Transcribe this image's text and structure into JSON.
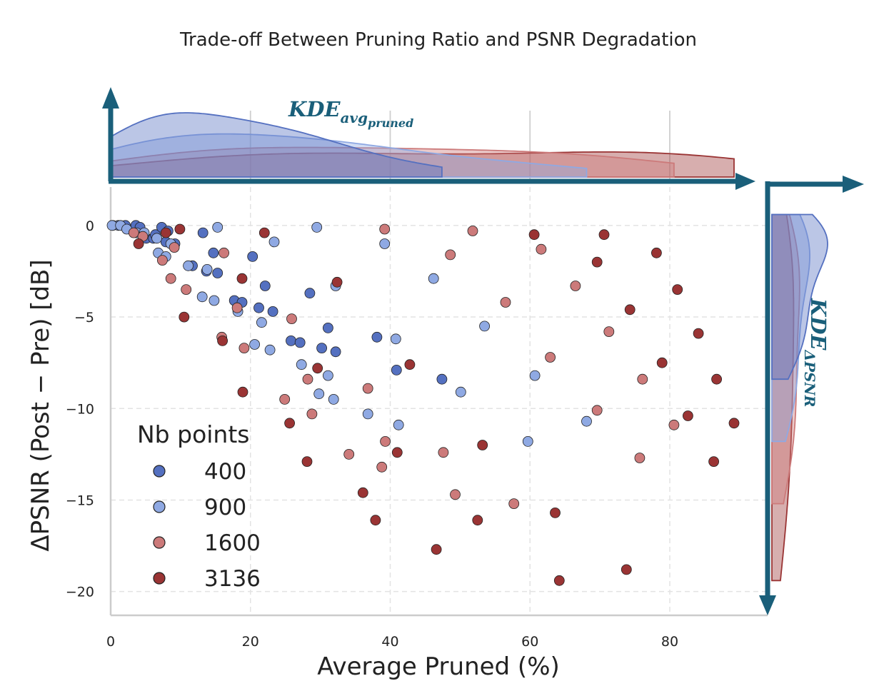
{
  "chart_data": {
    "type": "scatter",
    "title": "Trade-off Between Pruning Ratio and PSNR Degradation",
    "xlabel": "Average Pruned (%)",
    "ylabel": "ΔPSNR (Post − Pre) [dB]",
    "xlim": [
      0,
      94
    ],
    "ylim": [
      -21.3,
      2.1
    ],
    "x_ticks": [
      0,
      20,
      40,
      60,
      80
    ],
    "y_ticks": [
      0,
      -5,
      -10,
      -15,
      -20
    ],
    "grid": true,
    "legend": {
      "title": "Nb points",
      "position": "bottom-left"
    },
    "marginal_x_label": {
      "base": "KDE",
      "sub": "avg",
      "subsub": "pruned"
    },
    "marginal_y_label": {
      "base": "KDE",
      "sub": "ΔPSNR"
    },
    "arrow_color": "#1a5f7a",
    "series": [
      {
        "name": "400",
        "color": "#5470c0",
        "points": [
          [
            0.3,
            0
          ],
          [
            1.1,
            0
          ],
          [
            2.1,
            0
          ],
          [
            3.6,
            0
          ],
          [
            4.2,
            -0.1
          ],
          [
            5.1,
            -0.7
          ],
          [
            6.1,
            -0.7
          ],
          [
            6.4,
            -0.5
          ],
          [
            7.3,
            -0.1
          ],
          [
            7.9,
            -0.9
          ],
          [
            8.2,
            -0.3
          ],
          [
            9.2,
            -1.0
          ],
          [
            11.7,
            -2.2
          ],
          [
            13.2,
            -0.4
          ],
          [
            13.7,
            -2.5
          ],
          [
            14.7,
            -1.5
          ],
          [
            15.3,
            -2.6
          ],
          [
            17.7,
            -4.1
          ],
          [
            18.8,
            -4.2
          ],
          [
            20.3,
            -1.7
          ],
          [
            21.2,
            -4.5
          ],
          [
            22.1,
            -3.3
          ],
          [
            23.2,
            -4.7
          ],
          [
            25.8,
            -6.3
          ],
          [
            27.1,
            -6.4
          ],
          [
            28.5,
            -3.7
          ],
          [
            30.2,
            -6.7
          ],
          [
            31.1,
            -5.6
          ],
          [
            32.2,
            -6.9
          ],
          [
            38.1,
            -6.1
          ],
          [
            40.9,
            -7.9
          ],
          [
            47.4,
            -8.4
          ]
        ]
      },
      {
        "name": "900",
        "color": "#8fa9e3",
        "points": [
          [
            0.2,
            0
          ],
          [
            1.4,
            0
          ],
          [
            2.3,
            -0.2
          ],
          [
            3.7,
            -0.4
          ],
          [
            4.8,
            -0.4
          ],
          [
            6.6,
            -0.7
          ],
          [
            6.8,
            -1.5
          ],
          [
            7.9,
            -1.7
          ],
          [
            8.6,
            -1.0
          ],
          [
            11.1,
            -2.2
          ],
          [
            13.1,
            -3.9
          ],
          [
            13.8,
            -2.4
          ],
          [
            14.8,
            -4.1
          ],
          [
            15.3,
            -0.1
          ],
          [
            18.2,
            -4.7
          ],
          [
            20.6,
            -6.5
          ],
          [
            21.6,
            -5.3
          ],
          [
            22.8,
            -6.8
          ],
          [
            23.4,
            -0.9
          ],
          [
            27.3,
            -7.6
          ],
          [
            29.5,
            -0.1
          ],
          [
            29.8,
            -9.2
          ],
          [
            31.1,
            -8.2
          ],
          [
            31.9,
            -9.5
          ],
          [
            32.2,
            -3.3
          ],
          [
            36.8,
            -10.3
          ],
          [
            39.2,
            -1.0
          ],
          [
            40.8,
            -6.2
          ],
          [
            41.2,
            -10.9
          ],
          [
            46.2,
            -2.9
          ],
          [
            50.1,
            -9.1
          ],
          [
            53.5,
            -5.5
          ],
          [
            59.7,
            -11.8
          ],
          [
            60.7,
            -8.2
          ],
          [
            68.1,
            -10.7
          ]
        ]
      },
      {
        "name": "1600",
        "color": "#cc7a7a",
        "points": [
          [
            3.3,
            -0.4
          ],
          [
            4.6,
            -0.6
          ],
          [
            7.4,
            -1.9
          ],
          [
            9.1,
            -1.2
          ],
          [
            8.6,
            -2.9
          ],
          [
            10.8,
            -3.5
          ],
          [
            15.9,
            -6.1
          ],
          [
            16.2,
            -1.5
          ],
          [
            18.1,
            -4.5
          ],
          [
            19.1,
            -6.7
          ],
          [
            24.9,
            -9.5
          ],
          [
            25.9,
            -5.1
          ],
          [
            28.2,
            -8.4
          ],
          [
            28.8,
            -10.3
          ],
          [
            34.1,
            -12.5
          ],
          [
            36.8,
            -8.9
          ],
          [
            38.8,
            -13.2
          ],
          [
            39.2,
            -0.2
          ],
          [
            39.3,
            -11.8
          ],
          [
            47.6,
            -12.4
          ],
          [
            48.6,
            -1.6
          ],
          [
            49.3,
            -14.7
          ],
          [
            51.8,
            -0.3
          ],
          [
            56.5,
            -4.2
          ],
          [
            57.7,
            -15.2
          ],
          [
            61.6,
            -1.3
          ],
          [
            62.9,
            -7.2
          ],
          [
            66.5,
            -3.3
          ],
          [
            69.6,
            -10.1
          ],
          [
            71.3,
            -5.8
          ],
          [
            75.7,
            -12.7
          ],
          [
            76.1,
            -8.4
          ],
          [
            80.6,
            -10.9
          ]
        ]
      },
      {
        "name": "3136",
        "color": "#9a3434",
        "points": [
          [
            4.0,
            -1.0
          ],
          [
            7.9,
            -0.4
          ],
          [
            9.9,
            -0.2
          ],
          [
            10.5,
            -5.0
          ],
          [
            16.0,
            -6.3
          ],
          [
            18.8,
            -2.9
          ],
          [
            18.9,
            -9.1
          ],
          [
            22.0,
            -0.4
          ],
          [
            25.6,
            -10.8
          ],
          [
            28.1,
            -12.9
          ],
          [
            29.6,
            -7.8
          ],
          [
            32.4,
            -3.1
          ],
          [
            36.1,
            -14.6
          ],
          [
            37.9,
            -16.1
          ],
          [
            41.0,
            -12.4
          ],
          [
            42.8,
            -7.6
          ],
          [
            46.6,
            -17.7
          ],
          [
            52.5,
            -16.1
          ],
          [
            53.2,
            -12.0
          ],
          [
            60.6,
            -0.5
          ],
          [
            63.6,
            -15.7
          ],
          [
            64.2,
            -19.4
          ],
          [
            69.6,
            -2.0
          ],
          [
            70.6,
            -0.5
          ],
          [
            73.8,
            -18.8
          ],
          [
            74.3,
            -4.6
          ],
          [
            78.1,
            -1.5
          ],
          [
            78.9,
            -7.5
          ],
          [
            81.1,
            -3.5
          ],
          [
            82.6,
            -10.4
          ],
          [
            84.1,
            -5.9
          ],
          [
            86.3,
            -12.9
          ],
          [
            86.7,
            -8.4
          ],
          [
            89.2,
            -10.8
          ]
        ]
      }
    ]
  }
}
